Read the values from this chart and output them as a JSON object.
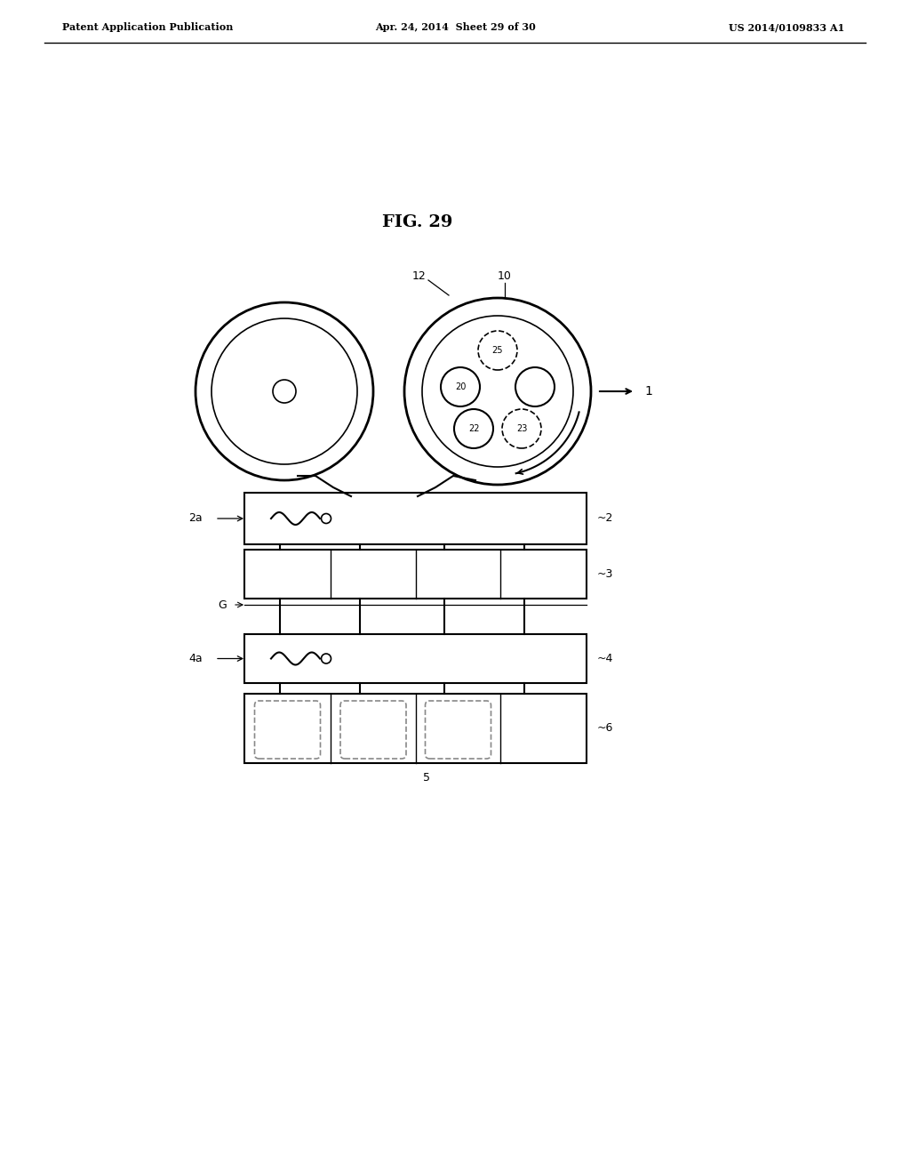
{
  "title": "FIG. 29",
  "header_left": "Patent Application Publication",
  "header_center": "Apr. 24, 2014  Sheet 29 of 30",
  "header_right": "US 2014/0109833 A1",
  "bg_color": "#ffffff",
  "line_color": "#000000",
  "gray_color": "#888888",
  "light_gray": "#cccccc",
  "dashed_color": "#888888"
}
